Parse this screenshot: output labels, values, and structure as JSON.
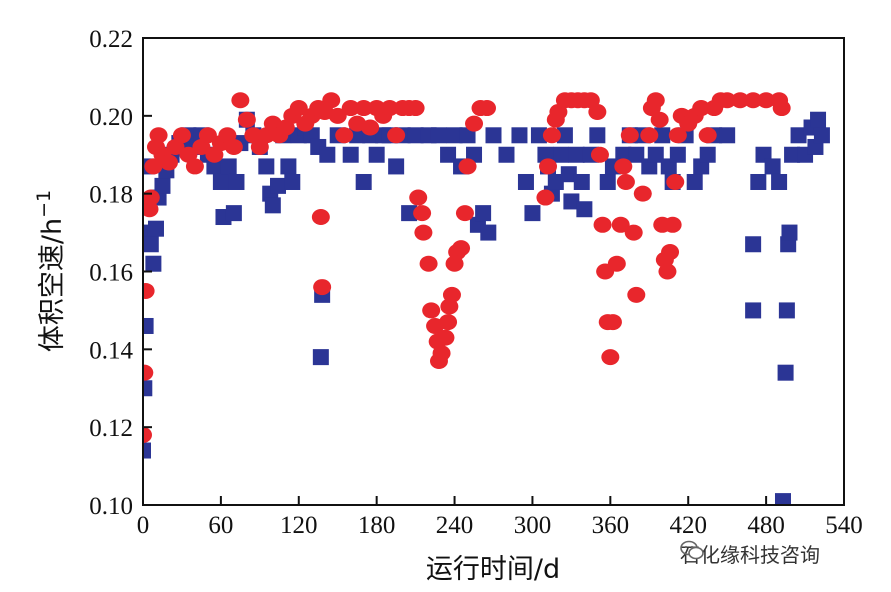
{
  "chart_data": {
    "type": "scatter",
    "xlabel": "运行时间/d",
    "ylabel_main": "体积空速/h",
    "ylabel_sup": "−1",
    "xlim": [
      0,
      540
    ],
    "ylim": [
      0.1,
      0.22
    ],
    "x_ticks": [
      "0",
      "60",
      "120",
      "180",
      "240",
      "300",
      "360",
      "420",
      "480",
      "540"
    ],
    "y_ticks": [
      "0.10",
      "0.12",
      "0.14",
      "0.16",
      "0.18",
      "0.20",
      "0.22"
    ],
    "grid": false,
    "series": [
      {
        "marker": "square",
        "color": "#2b3595",
        "points": [
          [
            0,
            0.114
          ],
          [
            1,
            0.13
          ],
          [
            2,
            0.146
          ],
          [
            1,
            0.17
          ],
          [
            3,
            0.187
          ],
          [
            6,
            0.167
          ],
          [
            8,
            0.162
          ],
          [
            10,
            0.171
          ],
          [
            12,
            0.179
          ],
          [
            15,
            0.182
          ],
          [
            18,
            0.186
          ],
          [
            22,
            0.19
          ],
          [
            28,
            0.193
          ],
          [
            35,
            0.195
          ],
          [
            40,
            0.192
          ],
          [
            45,
            0.195
          ],
          [
            50,
            0.19
          ],
          [
            55,
            0.187
          ],
          [
            60,
            0.183
          ],
          [
            62,
            0.174
          ],
          [
            66,
            0.187
          ],
          [
            70,
            0.175
          ],
          [
            72,
            0.183
          ],
          [
            75,
            0.193
          ],
          [
            80,
            0.199
          ],
          [
            85,
            0.195
          ],
          [
            90,
            0.192
          ],
          [
            95,
            0.187
          ],
          [
            98,
            0.18
          ],
          [
            100,
            0.177
          ],
          [
            104,
            0.182
          ],
          [
            108,
            0.195
          ],
          [
            112,
            0.187
          ],
          [
            115,
            0.183
          ],
          [
            120,
            0.195
          ],
          [
            125,
            0.197
          ],
          [
            130,
            0.195
          ],
          [
            135,
            0.192
          ],
          [
            137,
            0.138
          ],
          [
            138,
            0.154
          ],
          [
            142,
            0.19
          ],
          [
            150,
            0.195
          ],
          [
            160,
            0.19
          ],
          [
            165,
            0.195
          ],
          [
            170,
            0.183
          ],
          [
            175,
            0.195
          ],
          [
            180,
            0.19
          ],
          [
            185,
            0.195
          ],
          [
            190,
            0.195
          ],
          [
            195,
            0.187
          ],
          [
            200,
            0.195
          ],
          [
            205,
            0.175
          ],
          [
            210,
            0.195
          ],
          [
            220,
            0.195
          ],
          [
            228,
            0.195
          ],
          [
            235,
            0.19
          ],
          [
            240,
            0.195
          ],
          [
            245,
            0.187
          ],
          [
            250,
            0.195
          ],
          [
            255,
            0.19
          ],
          [
            258,
            0.172
          ],
          [
            262,
            0.175
          ],
          [
            266,
            0.17
          ],
          [
            270,
            0.195
          ],
          [
            280,
            0.19
          ],
          [
            290,
            0.195
          ],
          [
            295,
            0.183
          ],
          [
            300,
            0.175
          ],
          [
            305,
            0.195
          ],
          [
            310,
            0.19
          ],
          [
            312,
            0.187
          ],
          [
            315,
            0.18
          ],
          [
            318,
            0.183
          ],
          [
            322,
            0.19
          ],
          [
            325,
            0.195
          ],
          [
            328,
            0.185
          ],
          [
            330,
            0.178
          ],
          [
            334,
            0.19
          ],
          [
            338,
            0.183
          ],
          [
            340,
            0.176
          ],
          [
            345,
            0.19
          ],
          [
            350,
            0.195
          ],
          [
            358,
            0.183
          ],
          [
            362,
            0.187
          ],
          [
            370,
            0.19
          ],
          [
            375,
            0.195
          ],
          [
            380,
            0.19
          ],
          [
            385,
            0.195
          ],
          [
            390,
            0.187
          ],
          [
            395,
            0.19
          ],
          [
            400,
            0.195
          ],
          [
            405,
            0.187
          ],
          [
            408,
            0.183
          ],
          [
            412,
            0.19
          ],
          [
            418,
            0.195
          ],
          [
            425,
            0.183
          ],
          [
            430,
            0.187
          ],
          [
            435,
            0.19
          ],
          [
            440,
            0.195
          ],
          [
            450,
            0.195
          ],
          [
            470,
            0.167
          ],
          [
            470,
            0.15
          ],
          [
            474,
            0.183
          ],
          [
            478,
            0.19
          ],
          [
            485,
            0.187
          ],
          [
            490,
            0.183
          ],
          [
            493,
            0.101
          ],
          [
            495,
            0.134
          ],
          [
            496,
            0.15
          ],
          [
            497,
            0.167
          ],
          [
            498,
            0.17
          ],
          [
            500,
            0.19
          ],
          [
            505,
            0.195
          ],
          [
            510,
            0.19
          ],
          [
            515,
            0.197
          ],
          [
            518,
            0.192
          ],
          [
            520,
            0.199
          ],
          [
            523,
            0.195
          ]
        ]
      },
      {
        "marker": "circle",
        "color": "#e8262c",
        "points": [
          [
            0,
            0.118
          ],
          [
            1,
            0.134
          ],
          [
            2,
            0.155
          ],
          [
            5,
            0.176
          ],
          [
            6,
            0.179
          ],
          [
            8,
            0.187
          ],
          [
            10,
            0.192
          ],
          [
            12,
            0.195
          ],
          [
            15,
            0.19
          ],
          [
            20,
            0.188
          ],
          [
            25,
            0.192
          ],
          [
            30,
            0.195
          ],
          [
            35,
            0.19
          ],
          [
            40,
            0.187
          ],
          [
            45,
            0.192
          ],
          [
            50,
            0.195
          ],
          [
            55,
            0.19
          ],
          [
            60,
            0.193
          ],
          [
            65,
            0.195
          ],
          [
            70,
            0.192
          ],
          [
            75,
            0.204
          ],
          [
            80,
            0.199
          ],
          [
            85,
            0.195
          ],
          [
            90,
            0.192
          ],
          [
            95,
            0.195
          ],
          [
            100,
            0.198
          ],
          [
            105,
            0.195
          ],
          [
            110,
            0.197
          ],
          [
            115,
            0.2
          ],
          [
            120,
            0.202
          ],
          [
            125,
            0.198
          ],
          [
            130,
            0.2
          ],
          [
            135,
            0.202
          ],
          [
            137,
            0.174
          ],
          [
            138,
            0.156
          ],
          [
            140,
            0.201
          ],
          [
            145,
            0.204
          ],
          [
            150,
            0.2
          ],
          [
            155,
            0.195
          ],
          [
            160,
            0.202
          ],
          [
            165,
            0.198
          ],
          [
            170,
            0.202
          ],
          [
            175,
            0.197
          ],
          [
            180,
            0.202
          ],
          [
            185,
            0.2
          ],
          [
            190,
            0.202
          ],
          [
            195,
            0.195
          ],
          [
            200,
            0.202
          ],
          [
            205,
            0.202
          ],
          [
            210,
            0.202
          ],
          [
            212,
            0.179
          ],
          [
            215,
            0.175
          ],
          [
            216,
            0.17
          ],
          [
            220,
            0.162
          ],
          [
            222,
            0.15
          ],
          [
            225,
            0.146
          ],
          [
            227,
            0.142
          ],
          [
            228,
            0.137
          ],
          [
            230,
            0.139
          ],
          [
            233,
            0.143
          ],
          [
            235,
            0.147
          ],
          [
            236,
            0.151
          ],
          [
            238,
            0.154
          ],
          [
            240,
            0.162
          ],
          [
            242,
            0.165
          ],
          [
            245,
            0.166
          ],
          [
            248,
            0.175
          ],
          [
            250,
            0.187
          ],
          [
            255,
            0.198
          ],
          [
            260,
            0.202
          ],
          [
            265,
            0.202
          ],
          [
            310,
            0.179
          ],
          [
            312,
            0.187
          ],
          [
            315,
            0.195
          ],
          [
            318,
            0.199
          ],
          [
            320,
            0.201
          ],
          [
            325,
            0.204
          ],
          [
            330,
            0.204
          ],
          [
            335,
            0.204
          ],
          [
            340,
            0.204
          ],
          [
            345,
            0.204
          ],
          [
            350,
            0.201
          ],
          [
            352,
            0.19
          ],
          [
            354,
            0.172
          ],
          [
            356,
            0.16
          ],
          [
            358,
            0.147
          ],
          [
            360,
            0.138
          ],
          [
            362,
            0.147
          ],
          [
            365,
            0.162
          ],
          [
            368,
            0.172
          ],
          [
            370,
            0.187
          ],
          [
            372,
            0.183
          ],
          [
            375,
            0.195
          ],
          [
            378,
            0.17
          ],
          [
            380,
            0.154
          ],
          [
            385,
            0.18
          ],
          [
            390,
            0.195
          ],
          [
            392,
            0.202
          ],
          [
            395,
            0.204
          ],
          [
            398,
            0.199
          ],
          [
            400,
            0.172
          ],
          [
            402,
            0.163
          ],
          [
            404,
            0.16
          ],
          [
            406,
            0.165
          ],
          [
            408,
            0.172
          ],
          [
            410,
            0.183
          ],
          [
            412,
            0.195
          ],
          [
            415,
            0.2
          ],
          [
            420,
            0.198
          ],
          [
            425,
            0.2
          ],
          [
            430,
            0.202
          ],
          [
            435,
            0.195
          ],
          [
            440,
            0.202
          ],
          [
            445,
            0.204
          ],
          [
            450,
            0.204
          ],
          [
            460,
            0.204
          ],
          [
            470,
            0.204
          ],
          [
            480,
            0.204
          ],
          [
            490,
            0.204
          ],
          [
            492,
            0.202
          ]
        ]
      }
    ]
  },
  "watermark": {
    "text": "石化缘科技咨询",
    "icon": "wechat-icon"
  }
}
